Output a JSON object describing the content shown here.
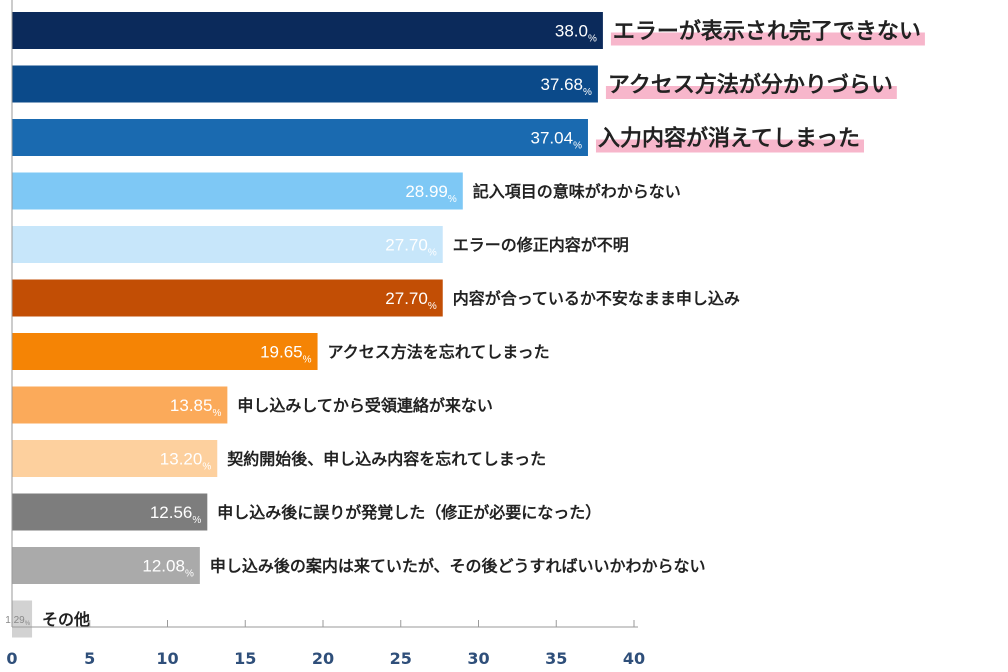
{
  "chart_data": {
    "type": "bar",
    "orientation": "horizontal",
    "categories": [
      "エラーが表示され完了できない",
      "アクセス方法が分かりづらい",
      "入力内容が消えてしまった",
      "記入項目の意味がわからない",
      "エラーの修正内容が不明",
      "内容が合っているか不安なまま申し込み",
      "アクセス方法を忘れてしまった",
      "申し込みしてから受領連絡が来ない",
      "契約開始後、申し込み内容を忘れてしまった",
      "申し込み後に誤りが発覚した（修正が必要になった）",
      "申し込み後の案内は来ていたが、その後どうすればいいかわからない",
      "その他"
    ],
    "values": [
      38.0,
      37.68,
      37.04,
      28.99,
      27.7,
      27.7,
      19.65,
      13.85,
      13.2,
      12.56,
      12.08,
      1.29
    ],
    "value_labels": [
      "38.0",
      "37.68",
      "37.04",
      "28.99",
      "27.70",
      "27.70",
      "19.65",
      "13.85",
      "13.20",
      "12.56",
      "12.08",
      "1.29"
    ],
    "unit": "%",
    "bar_colors": [
      "#0b2a5b",
      "#0b4a8a",
      "#1a6ab0",
      "#7ec8f5",
      "#c7e6fa",
      "#c24e05",
      "#f58405",
      "#fbaa5a",
      "#fdd09e",
      "#7d7d7d",
      "#aaaaaa",
      "#d2d2d2"
    ],
    "value_label_colors": [
      "#ffffff",
      "#ffffff",
      "#ffffff",
      "#ffffff",
      "#ffffff",
      "#ffffff",
      "#ffffff",
      "#ffffff",
      "#ffffff",
      "#ffffff",
      "#ffffff",
      "#888888"
    ],
    "highlighted_top": 3,
    "highlight_color": "#f7b6cb",
    "xlim": [
      0,
      40
    ],
    "xticks": [
      "0",
      "5",
      "10",
      "15",
      "20",
      "25",
      "30",
      "35",
      "40"
    ],
    "grid": false
  }
}
